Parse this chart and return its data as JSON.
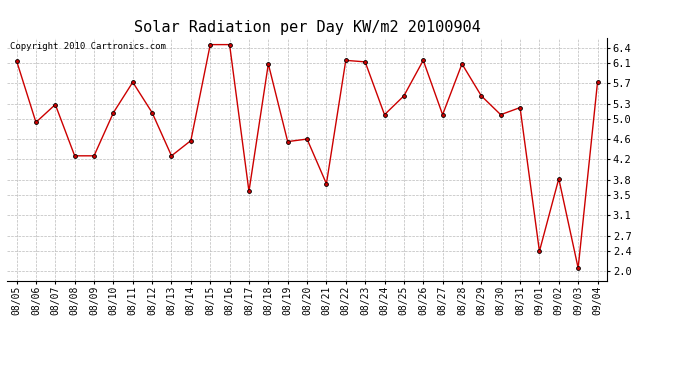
{
  "title": "Solar Radiation per Day KW/m2 20100904",
  "copyright": "Copyright 2010 Cartronics.com",
  "dates": [
    "08/05",
    "08/06",
    "08/07",
    "08/08",
    "08/09",
    "08/10",
    "08/11",
    "08/12",
    "08/13",
    "08/14",
    "08/15",
    "08/16",
    "08/17",
    "08/18",
    "08/19",
    "08/20",
    "08/21",
    "08/22",
    "08/23",
    "08/24",
    "08/25",
    "08/26",
    "08/27",
    "08/28",
    "08/29",
    "08/30",
    "08/31",
    "09/01",
    "09/02",
    "09/03",
    "09/04"
  ],
  "values": [
    6.14,
    4.93,
    5.28,
    4.27,
    4.27,
    5.12,
    5.72,
    5.12,
    4.27,
    4.57,
    6.46,
    6.46,
    3.57,
    6.08,
    4.55,
    4.6,
    3.72,
    6.15,
    6.12,
    5.08,
    5.45,
    6.15,
    5.08,
    6.08,
    5.45,
    5.08,
    5.22,
    2.39,
    3.82,
    2.06,
    5.72
  ],
  "line_color": "#cc0000",
  "marker_color": "#000000",
  "bg_color": "#ffffff",
  "grid_color": "#bbbbbb",
  "ylim": [
    1.8,
    6.6
  ],
  "yticks": [
    2.0,
    2.4,
    2.7,
    3.1,
    3.5,
    3.8,
    4.2,
    4.6,
    5.0,
    5.3,
    5.7,
    6.1,
    6.4
  ],
  "title_fontsize": 11,
  "copyright_fontsize": 6.5,
  "tick_fontsize": 7,
  "ytick_fontsize": 7.5
}
